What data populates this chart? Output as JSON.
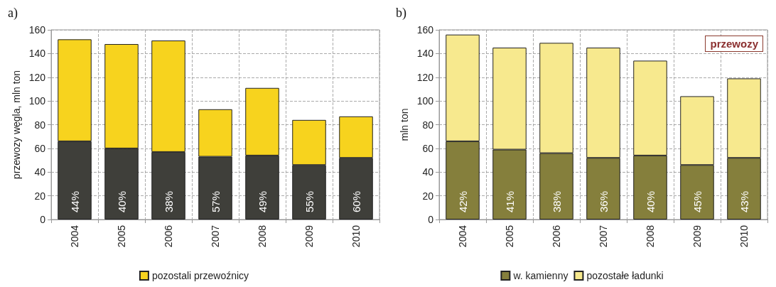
{
  "chart_data": [
    {
      "type": "bar",
      "title": "a)",
      "ylabel": "przewozy węgla, mln ton",
      "categories": [
        "2004",
        "2005",
        "2006",
        "2007",
        "2008",
        "2009",
        "2010"
      ],
      "stacked": true,
      "ylim": [
        0,
        160
      ],
      "yticks": [
        0,
        20,
        40,
        60,
        80,
        100,
        120,
        140,
        160
      ],
      "grid": true,
      "legend": "bottom",
      "annotations": [
        "44%",
        "40%",
        "38%",
        "57%",
        "49%",
        "55%",
        "60%"
      ],
      "series": [
        {
          "color": "#3f3f3a",
          "values": [
            66,
            60,
            57,
            53,
            54,
            46,
            52
          ]
        },
        {
          "name": "pozostali przewoźnicy",
          "color": "#f7d31e",
          "values": [
            86,
            88,
            94,
            40,
            57,
            38,
            35
          ]
        }
      ]
    },
    {
      "type": "bar",
      "title": "b)",
      "ylabel": "mln ton",
      "categories": [
        "2004",
        "2005",
        "2006",
        "2007",
        "2008",
        "2009",
        "2010"
      ],
      "stacked": true,
      "ylim": [
        0,
        160
      ],
      "yticks": [
        0,
        20,
        40,
        60,
        80,
        100,
        120,
        140,
        160
      ],
      "grid": true,
      "legend": "bottom",
      "annotations": [
        "przewozy",
        "42%",
        "41%",
        "38%",
        "36%",
        "40%",
        "45%",
        "43%"
      ],
      "series": [
        {
          "name": "w. kamienny",
          "color": "#857f3c",
          "values": [
            66,
            59,
            56,
            52,
            54,
            46,
            52
          ]
        },
        {
          "name": "pozostałe ładunki",
          "color": "#f7e98e",
          "values": [
            90,
            86,
            93,
            93,
            80,
            58,
            67
          ]
        }
      ]
    }
  ]
}
